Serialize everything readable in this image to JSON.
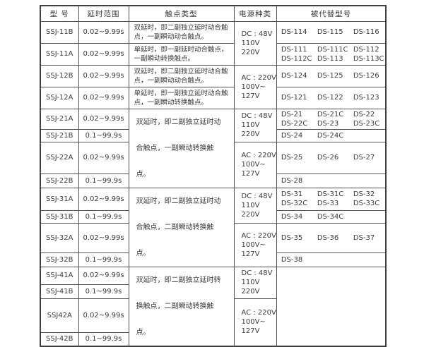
{
  "table": {
    "headers": [
      "型 号",
      "延时范围",
      "触点类型",
      "电源种类",
      "被代替型号"
    ],
    "rows": [
      {
        "model": "SSJ-11B",
        "delay": "0.02~9.99s"
      },
      {
        "model": "SSJ-11A",
        "delay": "0.02~9.99s"
      },
      {
        "model": "SSJ-12B",
        "delay": "0.02~9.99s"
      },
      {
        "model": "SSJ-12A",
        "delay": "0.02~9.99s"
      },
      {
        "model": "SSJ-21A",
        "delay": "0.02~9.99s"
      },
      {
        "model": "SSJ-21B",
        "delay": "0.1~99.9s"
      },
      {
        "model": "SSJ-22A",
        "delay": "0.02~9.99s"
      },
      {
        "model": "SSJ-22B",
        "delay": "0.1~99.9s"
      },
      {
        "model": "SSJ-31A",
        "delay": "0.02~9.99s"
      },
      {
        "model": "SSJ-31B",
        "delay": "0.1~99.9s"
      },
      {
        "model": "SSJ-32A",
        "delay": "0.02~9.99s"
      },
      {
        "model": "SSJ-32B",
        "delay": "0.1~99.9s"
      },
      {
        "model": "SSJ-41A",
        "delay": "0.02~9.99s"
      },
      {
        "model": "SSJ-41B",
        "delay": "0.1~99.9s"
      },
      {
        "model": "SSJ42A",
        "delay": "0.02~9.99s"
      },
      {
        "model": "SSJ-42B",
        "delay": "0.1~99.9s"
      }
    ],
    "contact_cells": [
      "双延时，即二副独立延时动合触点，一副瞬动动合触点。",
      "单延时，即一副延时动合触点，一副瞬动转换触点。",
      "双延时，即二副独立延时动合触点，一副瞬动动合触点。",
      "单延时，即一副独立延时动合触点，一副瞬动转换触点。",
      "双延时，即二副独立延时动合触点，一副瞬动转换触点。",
      "双延时，即二副独立延时动合触点，二副瞬动转换触点。",
      "双延时，即二副独立延时转换触点，二副瞬动转换触点。"
    ],
    "power_cells": [
      [
        "DC : 48V",
        "110V",
        "220V"
      ],
      [
        "AC : 220V",
        "100V~",
        "127V"
      ],
      [
        "DC : 48V",
        "110V",
        "220V"
      ],
      [
        "AC : 220V",
        "100V~",
        "127V"
      ],
      [
        "DC : 48V",
        "110V",
        "220V"
      ],
      [
        "AC : 220V",
        "100V~",
        "127V"
      ],
      [
        "DC : 48V",
        "110V",
        "220V"
      ],
      [
        "AC : 220V",
        "100V~",
        "127V"
      ]
    ],
    "replaced_cells": [
      [
        [
          "DS-114",
          "DS-115",
          "DS-116"
        ]
      ],
      [
        [
          "DS-111",
          "DS-111C",
          "DS-112"
        ],
        [
          "DS-112C",
          "DS-113",
          "DS-113C"
        ]
      ],
      [
        [
          "DS-124",
          "DS-125",
          "DS-126"
        ]
      ],
      [
        [
          "DS-121",
          "DS-122",
          "DS-123"
        ]
      ],
      [
        [
          "DS-21",
          "DS-21C",
          "DS-22"
        ],
        [
          "DS-22C",
          "DS-23",
          "DS-23C"
        ]
      ],
      [
        [
          "DS-24",
          "DS-24C"
        ]
      ],
      [
        [
          "DS-25",
          "DS-26",
          "DS-27"
        ]
      ],
      [
        [
          "DS-28"
        ]
      ],
      [
        [
          "DS-31",
          "DS-31C",
          "DS-32"
        ],
        [
          "DS-32C",
          "DS-33",
          "DS-33C"
        ]
      ],
      [
        [
          "DS-34",
          "DS-34C"
        ]
      ],
      [
        [
          "DS-35",
          "DS-36",
          "DS-37"
        ]
      ],
      [
        [
          "DS-38"
        ]
      ],
      []
    ]
  },
  "colors": {
    "table_border": "#404040",
    "grid_line": "#525252",
    "text": "#3a3a3a",
    "page_background": "#ffffff"
  }
}
